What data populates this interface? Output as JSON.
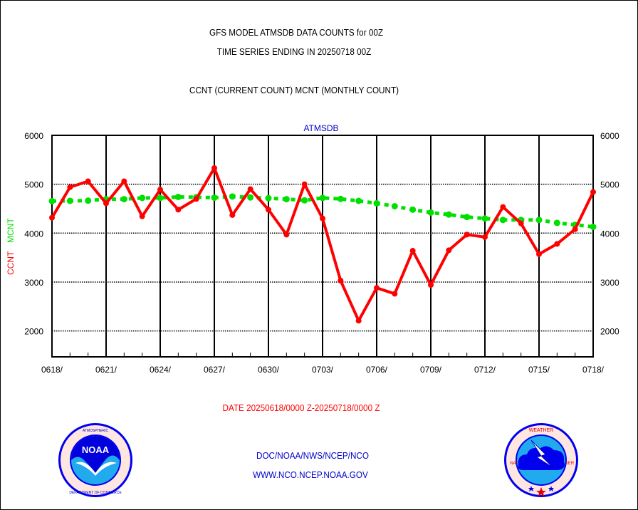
{
  "header": {
    "title_line1": "GFS MODEL ATMSDB DATA COUNTS for 00Z",
    "title_line2": "TIME SERIES ENDING IN 20250718 00Z",
    "subtitle": "CCNT (CURRENT COUNT) MCNT (MONTHLY COUNT)"
  },
  "footer": {
    "date_range": "DATE 20250618/0000 Z-20250718/0000 Z",
    "org": "DOC/NOAA/NWS/NCEP/NCO",
    "url": "WWW.NCO.NCEP.NOAA.GOV",
    "left_logo": "noaa-logo",
    "right_logo": "nws-logo"
  },
  "colors": {
    "ccnt": "#ff0000",
    "mcnt": "#00e000",
    "panel_title": "#0000cc",
    "footer_text": "#0000cc",
    "date_text": "#ff0000"
  },
  "chart_data": {
    "type": "line",
    "title": "ATMSDB",
    "xlabel": "",
    "ylabel_parts": [
      {
        "text": "CCNT",
        "color": "#ff0000"
      },
      {
        "text": "MCNT",
        "color": "#00e000"
      }
    ],
    "ylim": [
      1470,
      6000
    ],
    "yticks": [
      2000,
      3000,
      4000,
      5000,
      6000
    ],
    "ytick_labels": [
      "2000",
      "3000",
      "4000",
      "5000",
      "6000"
    ],
    "grid": true,
    "x": [
      "0618",
      "0619",
      "0620",
      "0621",
      "0622",
      "0623",
      "0624",
      "0625",
      "0626",
      "0627",
      "0628",
      "0629",
      "0630",
      "0701",
      "0702",
      "0703",
      "0704",
      "0705",
      "0706",
      "0707",
      "0708",
      "0709",
      "0710",
      "0711",
      "0712",
      "0713",
      "0714",
      "0715",
      "0716",
      "0717",
      "0718"
    ],
    "xtick_labels": [
      "0618/",
      "0621/",
      "0624/",
      "0627/",
      "0630/",
      "0703/",
      "0706/",
      "0709/",
      "0712/",
      "0715/",
      "0718/"
    ],
    "xtick_every": 3,
    "series": [
      {
        "name": "CCNT",
        "style": "solid-with-markers",
        "color": "#ff0000",
        "values": [
          4316,
          4940,
          5060,
          4610,
          5060,
          4345,
          4890,
          4480,
          4700,
          5330,
          4370,
          4900,
          4480,
          3970,
          5000,
          4300,
          3030,
          2210,
          2880,
          2760,
          3640,
          2940,
          3650,
          3970,
          3920,
          4535,
          4200,
          3570,
          3780,
          4080,
          4840
        ]
      },
      {
        "name": "MCNT",
        "style": "dashed-with-markers",
        "color": "#00e000",
        "values": [
          4655,
          4660,
          4665,
          4695,
          4695,
          4720,
          4720,
          4740,
          4735,
          4725,
          4750,
          4730,
          4715,
          4695,
          4670,
          4720,
          4700,
          4660,
          4610,
          4550,
          4480,
          4420,
          4380,
          4330,
          4300,
          4270,
          4270,
          4270,
          4210,
          4170,
          4130
        ]
      }
    ]
  }
}
